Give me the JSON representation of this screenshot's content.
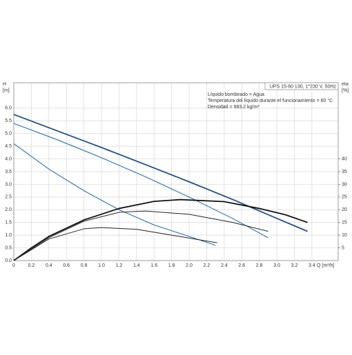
{
  "chart_data": {
    "type": "line",
    "title": "UPS 15-60 130, 1*230 V, 50Hz",
    "annotations": [
      "Líquido bombeado = Agua",
      "Temperatura del líquido durante el funcionamiento = 60 °C",
      "Densidad = 983.2 kg/m³"
    ],
    "y_label": "H",
    "y_unit": "[m]",
    "y2_label": "eta",
    "y2_unit": "[%]",
    "x_label": "Q [m³/h]",
    "xlim": [
      0,
      3.7
    ],
    "ylim": [
      0,
      7
    ],
    "y2lim": [
      0,
      70
    ],
    "xticks": [
      0,
      0.2,
      0.4,
      0.6,
      0.8,
      {
        "value": 1,
        "label": "1.0"
      },
      1.2,
      1.4,
      1.6,
      1.8,
      {
        "value": 2,
        "label": "2.0"
      },
      2.2,
      2.4,
      2.6,
      2.8,
      {
        "value": 3,
        "label": "3.0"
      },
      3.2,
      3.4
    ],
    "yticks": [
      {
        "value": 0,
        "label": "0.0"
      },
      0.5,
      {
        "value": 1,
        "label": "1.0"
      },
      1.5,
      {
        "value": 2,
        "label": "2.0"
      },
      2.5,
      {
        "value": 3,
        "label": "3.0"
      },
      3.5,
      {
        "value": 4,
        "label": "4.0"
      },
      4.5,
      {
        "value": 5,
        "label": "5.0"
      },
      5.5,
      {
        "value": 6,
        "label": "6.0"
      }
    ],
    "y2ticks": [
      5,
      10,
      15,
      20,
      25,
      30,
      35,
      40
    ],
    "grid": true,
    "series": [
      {
        "color": "#1f4e8c",
        "width": 1.8,
        "x": [
          0,
          0.5,
          1.0,
          1.5,
          2.0,
          2.5,
          3.0,
          3.35
        ],
        "values": [
          5.75,
          5.1,
          4.45,
          3.78,
          3.1,
          2.4,
          1.66,
          1.15
        ]
      },
      {
        "color": "#2a6fae",
        "width": 1.1,
        "x": [
          0,
          0.5,
          1.0,
          1.5,
          2.0,
          2.5,
          2.9
        ],
        "values": [
          5.4,
          4.75,
          4.05,
          3.3,
          2.5,
          1.65,
          0.9
        ]
      },
      {
        "color": "#2a6fae",
        "width": 1.1,
        "x": [
          0,
          0.4,
          0.8,
          1.2,
          1.6,
          2.0,
          2.3
        ],
        "values": [
          4.6,
          3.6,
          2.75,
          2.0,
          1.4,
          0.95,
          0.6
        ]
      },
      {
        "color": "#111111",
        "width": 1.8,
        "axis": "y2",
        "x": [
          0,
          0.2,
          0.4,
          0.8,
          1.2,
          1.6,
          1.9,
          2.4,
          2.8,
          3.1,
          3.35
        ],
        "values": [
          0,
          5,
          9.5,
          16,
          20.5,
          23.3,
          24,
          23.2,
          20.5,
          18,
          15
        ]
      },
      {
        "color": "#222222",
        "width": 1.0,
        "axis": "y2",
        "x": [
          0,
          0.4,
          0.8,
          1.2,
          1.5,
          2.0,
          2.5,
          2.9
        ],
        "values": [
          0,
          9,
          15.5,
          19,
          19.5,
          18.2,
          15,
          11.5
        ]
      },
      {
        "color": "#222222",
        "width": 1.0,
        "axis": "y2",
        "x": [
          0,
          0.4,
          0.8,
          1.0,
          1.4,
          1.8,
          2.32
        ],
        "values": [
          0,
          8.5,
          12.5,
          13,
          12.3,
          10,
          7
        ]
      }
    ]
  }
}
